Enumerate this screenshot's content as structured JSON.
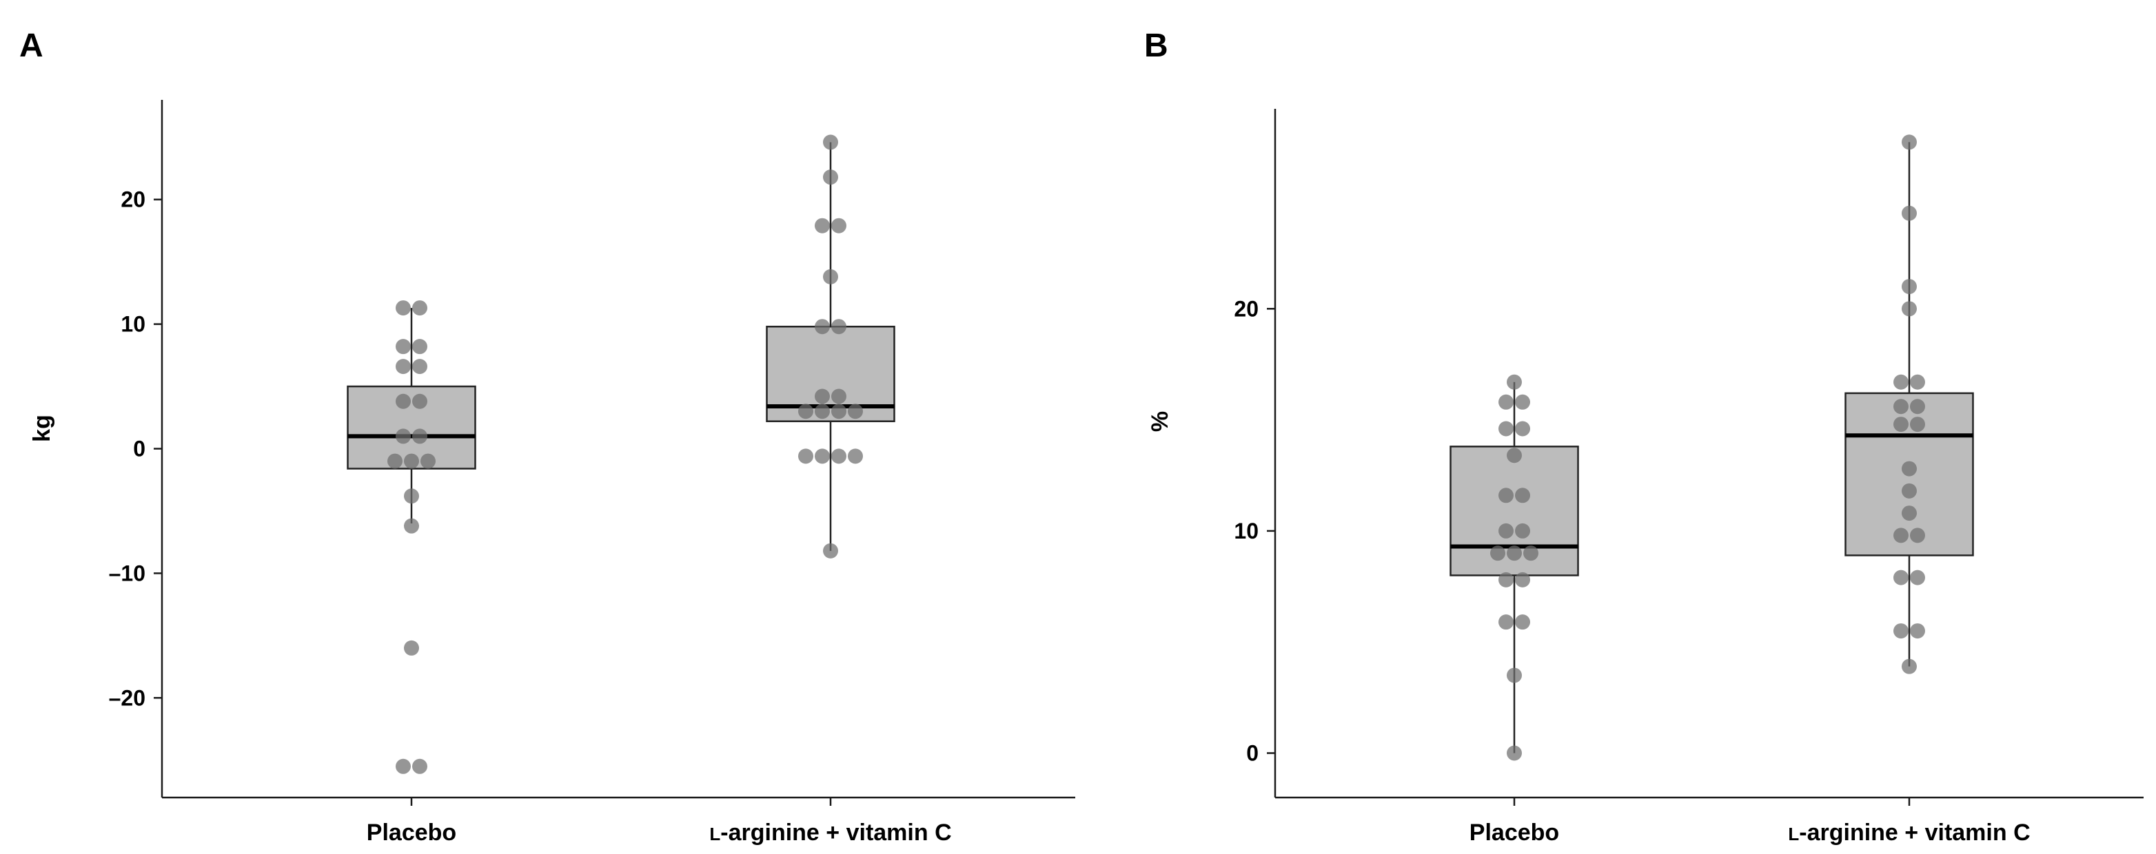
{
  "chart_data": [
    {
      "type": "box",
      "panel": "A",
      "ylabel": "kg",
      "xlabel": "",
      "ylim": [
        -28,
        28
      ],
      "yticks": [
        -20,
        -10,
        0,
        10,
        20
      ],
      "ytick_labels": [
        "–20",
        "–10",
        "0",
        "10",
        "20"
      ],
      "categories": [
        "Placebo",
        "L-arginine + vitamin C"
      ],
      "category_labels": [
        {
          "smallcap": "",
          "rest": "Placebo"
        },
        {
          "smallcap": "L",
          "rest": "-arginine + vitamin C"
        }
      ],
      "boxes": [
        {
          "name": "Placebo",
          "q1": -1.6,
          "median": 1.0,
          "q3": 5.0,
          "whisker_low": -6.0,
          "whisker_high": 11.3
        },
        {
          "name": "L-arginine + vitamin C",
          "q1": 2.2,
          "median": 3.4,
          "q3": 9.8,
          "whisker_low": -8.2,
          "whisker_high": 24.6
        }
      ],
      "points": [
        [
          11.3,
          11.3,
          8.2,
          8.2,
          6.6,
          6.6,
          3.8,
          3.8,
          1.0,
          1.0,
          -1.0,
          -1.0,
          -1.0,
          -3.8,
          -6.2,
          -16.0,
          -25.5,
          -25.5
        ],
        [
          24.6,
          21.8,
          17.9,
          17.9,
          13.8,
          9.8,
          9.8,
          4.2,
          4.2,
          3.0,
          3.0,
          3.0,
          3.0,
          -0.6,
          -0.6,
          -0.6,
          -0.6,
          -8.2
        ]
      ]
    },
    {
      "type": "box",
      "panel": "B",
      "ylabel": "%",
      "xlabel": "",
      "ylim": [
        -2,
        29
      ],
      "yticks": [
        0,
        10,
        20
      ],
      "ytick_labels": [
        "0",
        "10",
        "20"
      ],
      "categories": [
        "Placebo",
        "L-arginine + vitamin C"
      ],
      "category_labels": [
        {
          "smallcap": "",
          "rest": "Placebo"
        },
        {
          "smallcap": "L",
          "rest": "-arginine + vitamin C"
        }
      ],
      "boxes": [
        {
          "name": "Placebo",
          "q1": 8.0,
          "median": 9.3,
          "q3": 13.8,
          "whisker_low": 0.0,
          "whisker_high": 16.7
        },
        {
          "name": "L-arginine + vitamin C",
          "q1": 8.9,
          "median": 14.3,
          "q3": 16.2,
          "whisker_low": 3.9,
          "whisker_high": 27.5
        }
      ],
      "points": [
        [
          16.7,
          15.8,
          15.8,
          14.6,
          14.6,
          13.4,
          11.6,
          11.6,
          10.0,
          10.0,
          9.0,
          9.0,
          9.0,
          7.8,
          7.8,
          5.9,
          5.9,
          3.5,
          0.0
        ],
        [
          27.5,
          24.3,
          21.0,
          20.0,
          16.7,
          16.7,
          15.6,
          15.6,
          14.8,
          14.8,
          12.8,
          11.8,
          10.8,
          9.8,
          9.8,
          7.9,
          7.9,
          5.5,
          5.5,
          3.9
        ]
      ]
    }
  ],
  "colors": {
    "box_fill": "#bcbcbc",
    "box_stroke": "#222222",
    "median": "#000000",
    "point_fill": "#6e6e6e",
    "axis": "#1a1a1a"
  }
}
